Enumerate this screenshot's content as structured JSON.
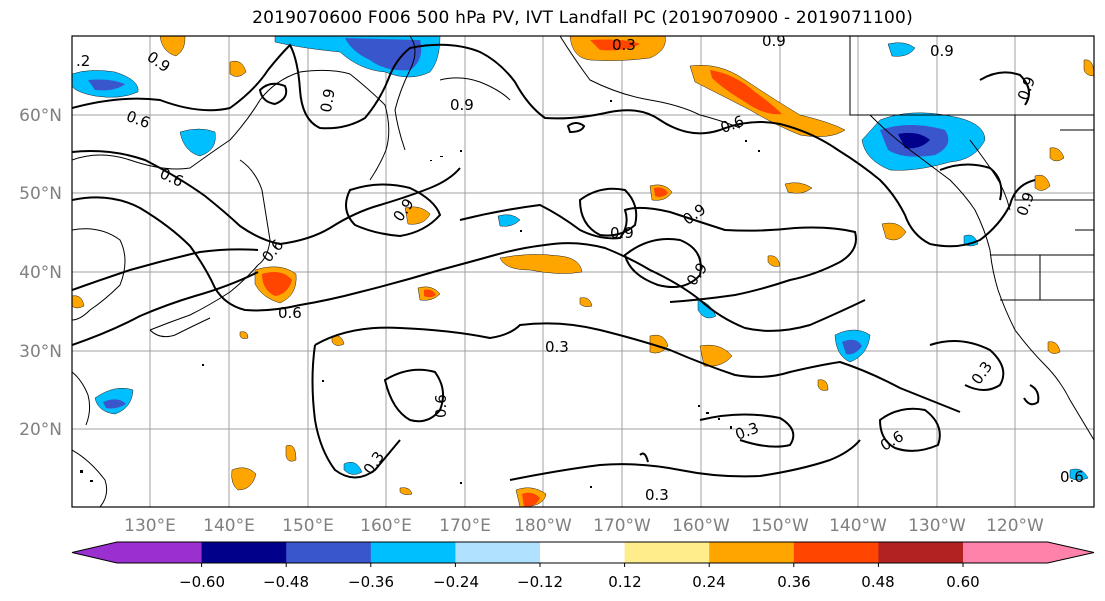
{
  "title": "2019070600 F006 500 hPa PV, IVT Landfall PC (2019070900 - 2019071100)",
  "lat_labels": [
    "60°N",
    "50°N",
    "40°N",
    "30°N",
    "20°N"
  ],
  "lon_labels": [
    "130°E",
    "140°E",
    "150°E",
    "160°E",
    "170°E",
    "180°W",
    "170°W",
    "160°W",
    "150°W",
    "140°W",
    "130°W",
    "120°W"
  ],
  "contour_labels": [
    ".2",
    "0.9",
    "0.6",
    "0.3",
    "0.9",
    "0.9",
    "0.6",
    "0.9",
    "0.9",
    "0.9",
    "0.9",
    "0.6",
    "0.9",
    "0.6",
    "0.6",
    "0.3",
    "0.6",
    "0.3",
    "0.3",
    "0.3",
    "0.6",
    "0.9",
    "0.3",
    "0.9",
    "0.6",
    "0.9"
  ],
  "colorbar": {
    "ticks": [
      "−0.60",
      "−0.48",
      "−0.36",
      "−0.24",
      "−0.12",
      "0.12",
      "0.24",
      "0.36",
      "0.48",
      "0.60"
    ],
    "colors": [
      "#9b30d0",
      "#00008b",
      "#3a56cc",
      "#00bfff",
      "#b0e2ff",
      "#ffffff",
      "#ffec8b",
      "#ffa500",
      "#ff4500",
      "#b22222",
      "#ff82ab"
    ]
  }
}
